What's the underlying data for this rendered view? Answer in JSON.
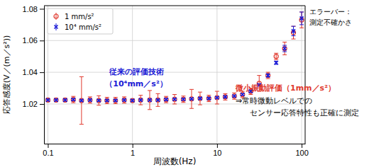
{
  "chart_data": {
    "type": "scatter",
    "x_label": "周波数(Hz)",
    "y_label": "応答感度(V／(m／s²))",
    "log": "x",
    "grid": true,
    "legend": "upper left",
    "x": [
      0.1,
      0.125,
      0.16,
      0.2,
      0.25,
      0.315,
      0.4,
      0.5,
      0.63,
      0.8,
      1,
      1.25,
      1.6,
      2,
      2.5,
      3.15,
      4,
      5,
      6.3,
      8,
      10,
      12.5,
      16,
      20,
      25,
      31.5,
      40,
      50,
      63,
      80,
      100
    ],
    "xlim": [
      0.09,
      110
    ],
    "xticks": [
      0.1,
      1,
      10,
      100
    ],
    "ylim": [
      0.995,
      1.082
    ],
    "yticks": [
      1.02,
      1.04,
      1.06,
      1.08
    ],
    "series": [
      {
        "name": "1 mm/s²",
        "color": "#e0392e",
        "marker": "circle",
        "values": [
          1.0225,
          1.0225,
          1.0225,
          1.0228,
          1.0222,
          1.0225,
          1.0222,
          1.0222,
          1.0222,
          1.0225,
          1.0222,
          1.0225,
          1.0225,
          1.0225,
          1.0228,
          1.023,
          1.023,
          1.0232,
          1.0235,
          1.0235,
          1.024,
          1.0245,
          1.025,
          1.026,
          1.028,
          1.033,
          1.038,
          1.05,
          1.055,
          1.065,
          1.073
        ],
        "errors": [
          0.001,
          0.001,
          0.001,
          0.002,
          0.015,
          0.002,
          0.003,
          0.002,
          0.002,
          0.002,
          0.001,
          0.003,
          0.006,
          0.004,
          0.002,
          0.003,
          0.002,
          0.006,
          0.004,
          0.002,
          0.004,
          0.002,
          0.002,
          0.002,
          0.002,
          0.005,
          0.002,
          0.002,
          0.004,
          0.004,
          0.005
        ]
      },
      {
        "name": "10⁴ mm/s²",
        "color": "#1c1cd6",
        "marker": "x",
        "values": [
          1.0225,
          1.0225,
          1.0225,
          1.0228,
          1.0222,
          1.0225,
          1.0222,
          1.0222,
          1.0222,
          1.0225,
          1.0222,
          1.0225,
          1.0225,
          1.0225,
          1.0228,
          1.023,
          1.023,
          1.0232,
          1.0235,
          1.0235,
          1.024,
          1.0245,
          1.025,
          1.026,
          1.028,
          1.032,
          1.038,
          1.046,
          1.055,
          1.066,
          1.074
        ],
        "errors": [
          0.0005,
          0.0005,
          0.0005,
          0.0005,
          0.0005,
          0.0005,
          0.0005,
          0.0005,
          0.0005,
          0.0005,
          0.0005,
          0.0005,
          0.0005,
          0.0005,
          0.0005,
          0.0005,
          0.0005,
          0.0005,
          0.0005,
          0.0005,
          0.0005,
          0.0005,
          0.0005,
          0.0005,
          0.0005,
          0.0005,
          0.001,
          0.001,
          0.002,
          0.003,
          0.004
        ]
      }
    ],
    "annotations": [
      {
        "text": "エラーバー：",
        "color": "#000000"
      },
      {
        "text": "測定不確かさ",
        "color": "#000000"
      },
      {
        "text": "従来の評価技術",
        "color": "#1c1cd6"
      },
      {
        "text": "（10⁴mm／s²）",
        "color": "#1c1cd6"
      },
      {
        "text": "微小振動評価（1mm／s²）",
        "color": "#e0392e"
      },
      {
        "text": "⇒常時微動レベルでの",
        "color": "#000000"
      },
      {
        "text": "センサー応答特性も正確に測定",
        "color": "#000000"
      }
    ]
  }
}
